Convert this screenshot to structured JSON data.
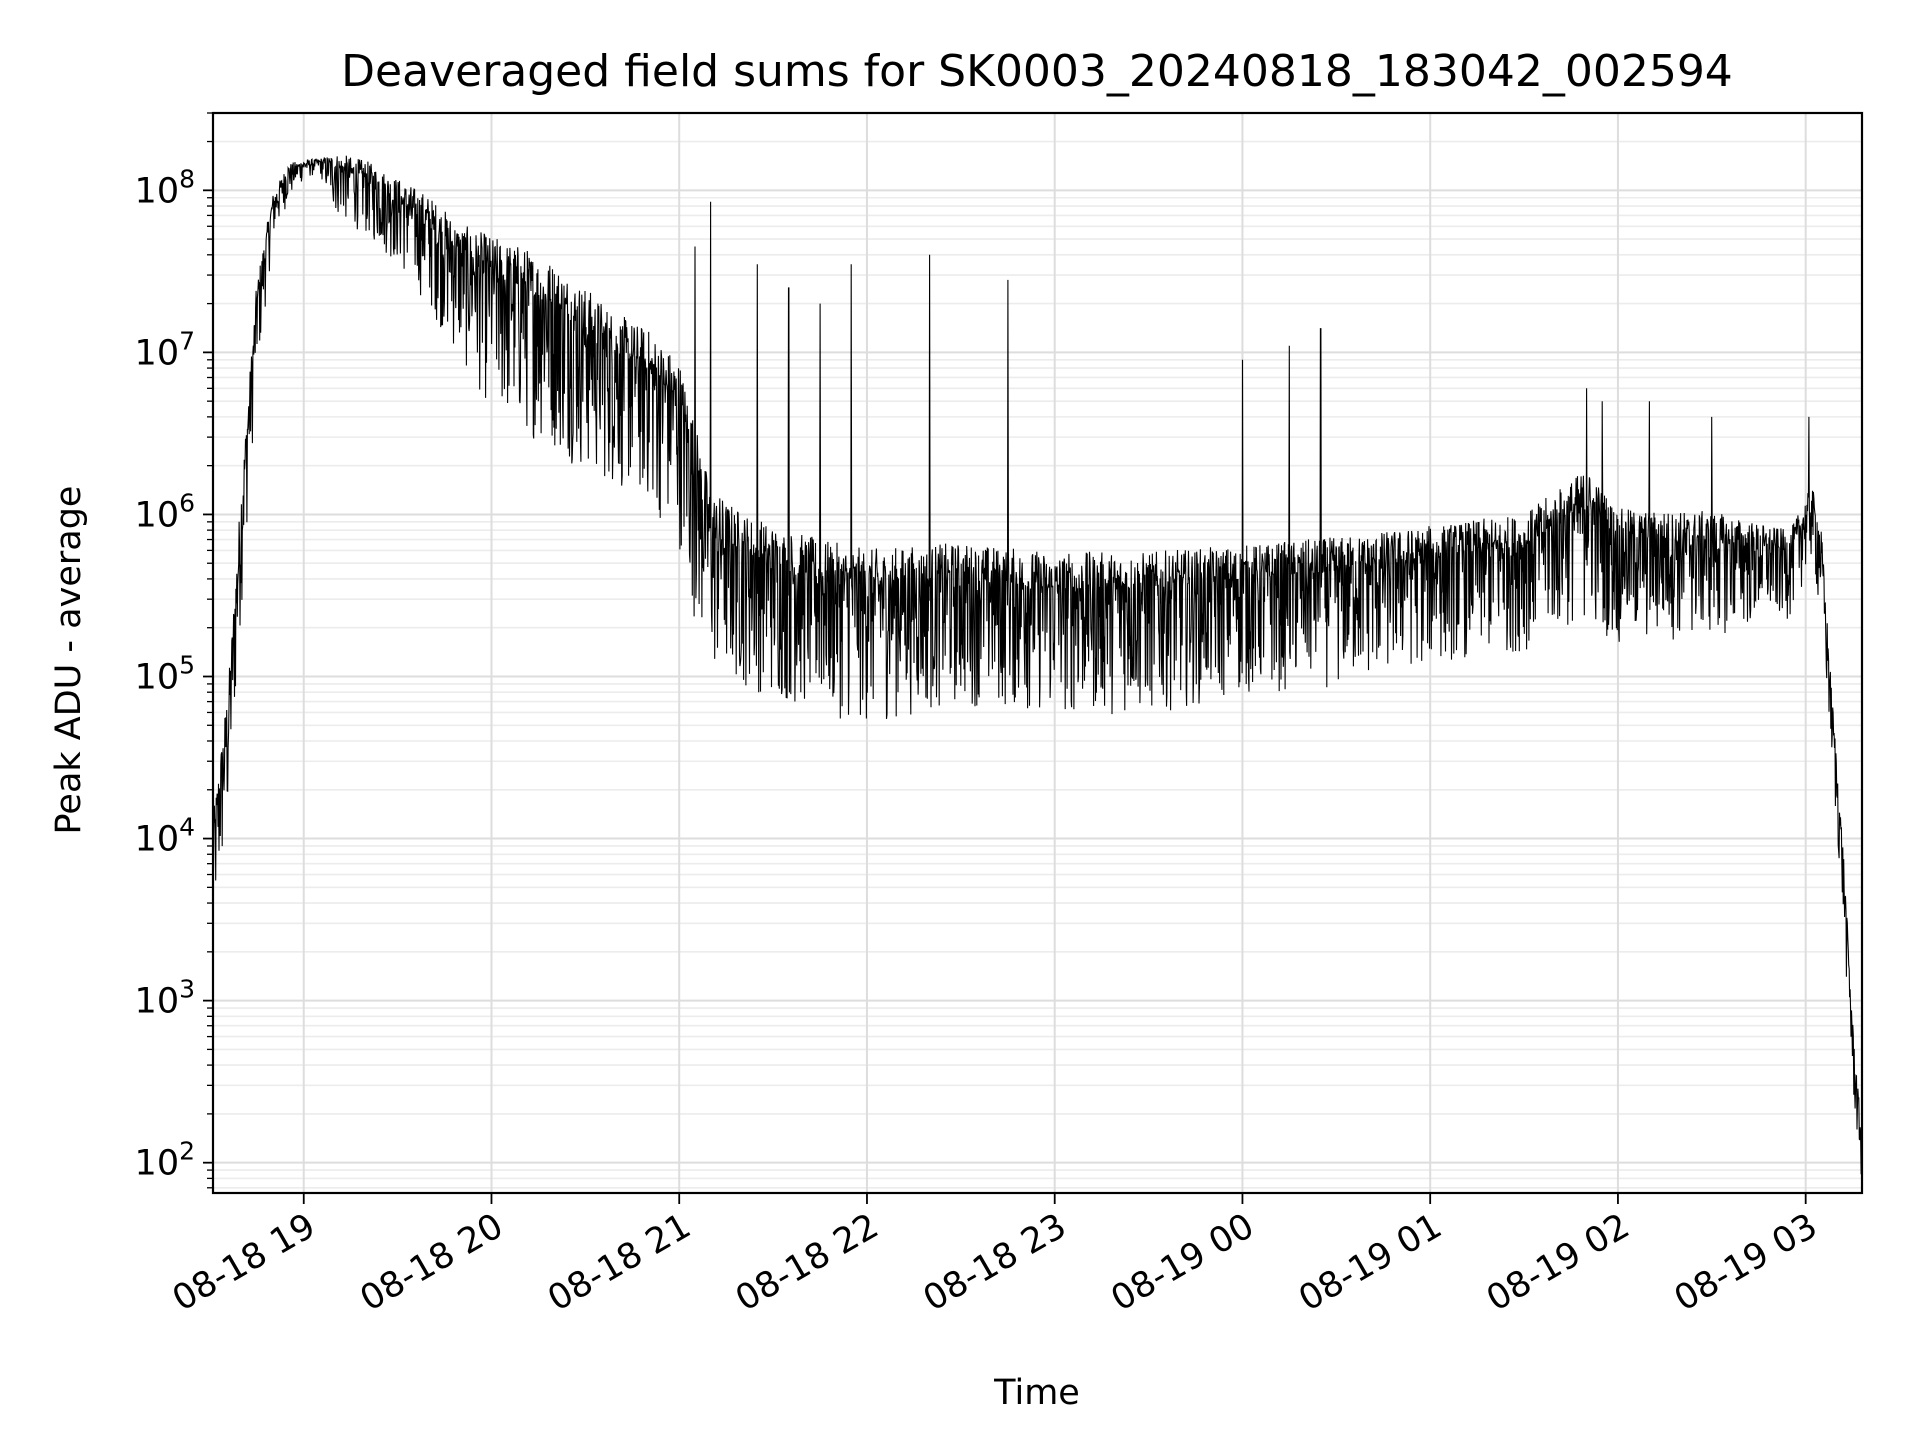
{
  "chart_data": {
    "type": "line",
    "title": "Deaveraged field sums for SK0003_20240818_183042_002594",
    "xlabel": "Time",
    "ylabel": "Peak ADU - average",
    "yscale": "log",
    "ylim": [
      65,
      300000000
    ],
    "xlim": [
      "2024-08-18 18:31",
      "2024-08-19 03:18"
    ],
    "grid": true,
    "grid_minor": true,
    "line_color": "#000000",
    "x_ticks": [
      {
        "value": "2024-08-18 19:00",
        "label": "08-18 19"
      },
      {
        "value": "2024-08-18 20:00",
        "label": "08-18 20"
      },
      {
        "value": "2024-08-18 21:00",
        "label": "08-18 21"
      },
      {
        "value": "2024-08-18 22:00",
        "label": "08-18 22"
      },
      {
        "value": "2024-08-18 23:00",
        "label": "08-18 23"
      },
      {
        "value": "2024-08-19 00:00",
        "label": "08-19 00"
      },
      {
        "value": "2024-08-19 01:00",
        "label": "08-19 01"
      },
      {
        "value": "2024-08-19 02:00",
        "label": "08-19 02"
      },
      {
        "value": "2024-08-19 03:00",
        "label": "08-19 03"
      }
    ],
    "y_ticks": [
      {
        "value": 100,
        "base": "10",
        "exp": "2"
      },
      {
        "value": 1000,
        "base": "10",
        "exp": "3"
      },
      {
        "value": 10000,
        "base": "10",
        "exp": "4"
      },
      {
        "value": 100000,
        "base": "10",
        "exp": "5"
      },
      {
        "value": 1000000,
        "base": "10",
        "exp": "6"
      },
      {
        "value": 10000000,
        "base": "10",
        "exp": "7"
      },
      {
        "value": 100000000,
        "base": "10",
        "exp": "8"
      }
    ],
    "series": [
      {
        "envelope_x": [
          "2024-08-18 18:31",
          "2024-08-18 18:36",
          "2024-08-18 18:40",
          "2024-08-18 18:45",
          "2024-08-18 18:50",
          "2024-08-18 18:55",
          "2024-08-18 19:00",
          "2024-08-18 19:05",
          "2024-08-18 19:10",
          "2024-08-18 19:20",
          "2024-08-18 19:30",
          "2024-08-18 19:40",
          "2024-08-18 19:50",
          "2024-08-18 20:00",
          "2024-08-18 20:10",
          "2024-08-18 20:20",
          "2024-08-18 20:30",
          "2024-08-18 20:40",
          "2024-08-18 20:50",
          "2024-08-18 21:00",
          "2024-08-18 21:05",
          "2024-08-18 21:10",
          "2024-08-18 21:20",
          "2024-08-18 21:30",
          "2024-08-18 21:45",
          "2024-08-18 22:00",
          "2024-08-18 22:30",
          "2024-08-18 23:00",
          "2024-08-18 23:30",
          "2024-08-19 00:00",
          "2024-08-19 00:30",
          "2024-08-19 01:00",
          "2024-08-19 01:30",
          "2024-08-19 01:50",
          "2024-08-19 02:00",
          "2024-08-19 02:30",
          "2024-08-19 02:55",
          "2024-08-19 03:02",
          "2024-08-19 03:05",
          "2024-08-19 03:08",
          "2024-08-19 03:12",
          "2024-08-19 03:15",
          "2024-08-19 03:18"
        ],
        "typical_y": [
          9000,
          60000,
          1000000,
          20000000,
          80000000,
          130000000,
          145000000,
          150000000,
          140000000,
          120000000,
          90000000,
          65000000,
          40000000,
          30000000,
          25000000,
          20000000,
          14000000,
          10000000,
          8000000,
          5000000,
          2000000,
          800000,
          600000,
          500000,
          400000,
          350000,
          400000,
          350000,
          350000,
          400000,
          450000,
          550000,
          650000,
          1200000,
          700000,
          700000,
          600000,
          1200000,
          600000,
          80000,
          7000,
          600,
          120
        ],
        "spread_dex": [
          0.5,
          0.6,
          0.5,
          0.4,
          0.2,
          0.15,
          0.08,
          0.06,
          0.25,
          0.3,
          0.35,
          0.45,
          0.55,
          0.7,
          0.75,
          0.75,
          0.75,
          0.7,
          0.7,
          0.75,
          0.8,
          0.75,
          0.7,
          0.7,
          0.7,
          0.7,
          0.65,
          0.65,
          0.65,
          0.6,
          0.6,
          0.55,
          0.55,
          0.6,
          0.55,
          0.5,
          0.35,
          0.3,
          0.4,
          0.3,
          0.3,
          0.3,
          0.2
        ],
        "spikes": [
          {
            "x": "2024-08-18 21:05",
            "y": 45000000
          },
          {
            "x": "2024-08-18 21:10",
            "y": 85000000
          },
          {
            "x": "2024-08-18 21:25",
            "y": 35000000
          },
          {
            "x": "2024-08-18 21:35",
            "y": 25000000
          },
          {
            "x": "2024-08-18 21:45",
            "y": 20000000
          },
          {
            "x": "2024-08-18 21:55",
            "y": 35000000
          },
          {
            "x": "2024-08-18 22:20",
            "y": 40000000
          },
          {
            "x": "2024-08-18 22:45",
            "y": 28000000
          },
          {
            "x": "2024-08-19 00:00",
            "y": 9000000
          },
          {
            "x": "2024-08-19 00:15",
            "y": 11000000
          },
          {
            "x": "2024-08-19 00:25",
            "y": 14000000
          },
          {
            "x": "2024-08-19 01:50",
            "y": 6000000
          },
          {
            "x": "2024-08-19 01:55",
            "y": 5000000
          },
          {
            "x": "2024-08-19 02:10",
            "y": 5000000
          },
          {
            "x": "2024-08-19 02:30",
            "y": 4000000
          },
          {
            "x": "2024-08-19 03:01",
            "y": 4000000
          }
        ]
      }
    ]
  }
}
